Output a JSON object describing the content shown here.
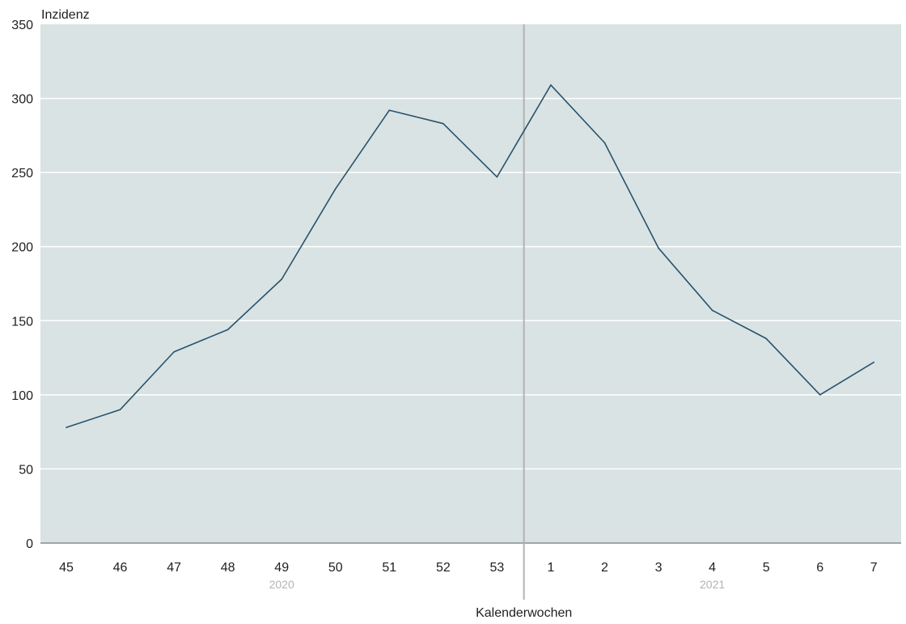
{
  "chart_data": {
    "type": "line",
    "title": "",
    "ylabel": "Inzidenz",
    "xlabel": "Kalenderwochen",
    "ylim": [
      0,
      350
    ],
    "yticks": [
      "0",
      "50",
      "100",
      "150",
      "200",
      "250",
      "300",
      "350"
    ],
    "categories": [
      "45",
      "46",
      "47",
      "48",
      "49",
      "50",
      "51",
      "52",
      "53",
      "1",
      "2",
      "3",
      "4",
      "5",
      "6",
      "7"
    ],
    "year_groups": [
      {
        "label": "2020",
        "categories": [
          "45",
          "46",
          "47",
          "48",
          "49",
          "50",
          "51",
          "52",
          "53"
        ]
      },
      {
        "label": "2021",
        "categories": [
          "1",
          "2",
          "3",
          "4",
          "5",
          "6",
          "7"
        ]
      }
    ],
    "series": [
      {
        "values": [
          78,
          90,
          129,
          144,
          178,
          239,
          292,
          283,
          247,
          309,
          270,
          199,
          157,
          138,
          100,
          122
        ]
      }
    ],
    "grid": true,
    "colors": {
      "plot_background": "#d9e3e3",
      "line": "#28526d",
      "grid": "#ffffff",
      "axis": "#8c8c8c",
      "year_divider": "#b3b3b3"
    }
  }
}
